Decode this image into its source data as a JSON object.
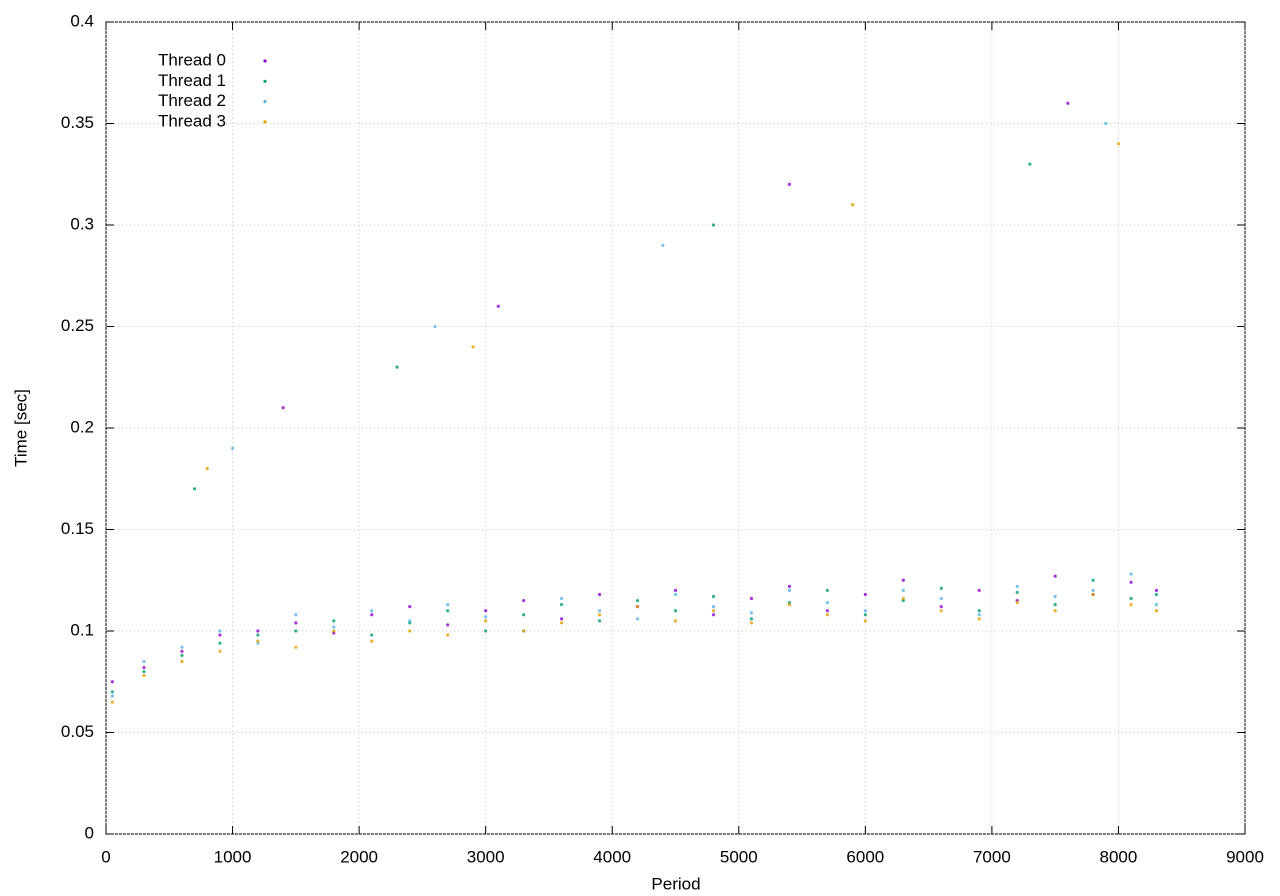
{
  "chart_data": {
    "type": "scatter",
    "xlabel": "Period",
    "ylabel": "Time [sec]",
    "xlim": [
      0,
      9000
    ],
    "xticks": [
      0,
      1000,
      2000,
      3000,
      4000,
      5000,
      6000,
      7000,
      8000,
      9000
    ],
    "ylim": [
      0,
      0.4
    ],
    "yticks": [
      0,
      0.05,
      0.1,
      0.15,
      0.2,
      0.25,
      0.3,
      0.35,
      0.4
    ],
    "grid": true,
    "legend": "upper left",
    "series": [
      {
        "name": "Thread 0",
        "color": "#9400d3",
        "x": [
          50,
          300,
          600,
          900,
          1200,
          1500,
          1800,
          2100,
          2400,
          2700,
          3000,
          3300,
          3600,
          3900,
          4200,
          4500,
          4800,
          5100,
          5400,
          5700,
          6000,
          6300,
          6600,
          6900,
          7200,
          7500,
          7800,
          8100,
          8300,
          1400,
          3100,
          5400,
          7600
        ],
        "values": [
          0.075,
          0.082,
          0.09,
          0.098,
          0.1,
          0.104,
          0.099,
          0.108,
          0.112,
          0.103,
          0.11,
          0.115,
          0.106,
          0.118,
          0.112,
          0.12,
          0.108,
          0.116,
          0.122,
          0.11,
          0.118,
          0.125,
          0.112,
          0.12,
          0.115,
          0.127,
          0.118,
          0.124,
          0.12,
          0.21,
          0.26,
          0.32,
          0.36
        ]
      },
      {
        "name": "Thread 1",
        "color": "#009e73",
        "x": [
          50,
          300,
          600,
          900,
          1200,
          1500,
          1800,
          2100,
          2400,
          2700,
          3000,
          3300,
          3600,
          3900,
          4200,
          4500,
          4800,
          5100,
          5400,
          5700,
          6000,
          6300,
          6600,
          6900,
          7200,
          7500,
          7800,
          8100,
          8300,
          700,
          2300,
          4800,
          7300
        ],
        "values": [
          0.07,
          0.08,
          0.088,
          0.094,
          0.098,
          0.1,
          0.105,
          0.098,
          0.104,
          0.11,
          0.1,
          0.108,
          0.113,
          0.105,
          0.115,
          0.11,
          0.117,
          0.106,
          0.114,
          0.12,
          0.108,
          0.115,
          0.121,
          0.11,
          0.119,
          0.113,
          0.125,
          0.116,
          0.118,
          0.17,
          0.23,
          0.3,
          0.33
        ]
      },
      {
        "name": "Thread 2",
        "color": "#56b4e9",
        "x": [
          50,
          300,
          600,
          900,
          1200,
          1500,
          1800,
          2100,
          2400,
          2700,
          3000,
          3300,
          3600,
          3900,
          4200,
          4500,
          4800,
          5100,
          5400,
          5700,
          6000,
          6300,
          6600,
          6900,
          7200,
          7500,
          7800,
          8100,
          8300,
          1000,
          2600,
          4400,
          7900
        ],
        "values": [
          0.068,
          0.085,
          0.092,
          0.1,
          0.094,
          0.108,
          0.102,
          0.11,
          0.105,
          0.113,
          0.107,
          0.1,
          0.116,
          0.11,
          0.106,
          0.118,
          0.112,
          0.109,
          0.12,
          0.114,
          0.11,
          0.12,
          0.116,
          0.108,
          0.122,
          0.117,
          0.12,
          0.128,
          0.113,
          0.19,
          0.25,
          0.29,
          0.35
        ]
      },
      {
        "name": "Thread 3",
        "color": "#e69f00",
        "x": [
          50,
          300,
          600,
          900,
          1200,
          1500,
          1800,
          2100,
          2400,
          2700,
          3000,
          3300,
          3600,
          3900,
          4200,
          4500,
          4800,
          5100,
          5400,
          5700,
          6000,
          6300,
          6600,
          6900,
          7200,
          7500,
          7800,
          8100,
          8300,
          800,
          2900,
          5900,
          8000
        ],
        "values": [
          0.065,
          0.078,
          0.085,
          0.09,
          0.095,
          0.092,
          0.1,
          0.095,
          0.1,
          0.098,
          0.105,
          0.1,
          0.104,
          0.108,
          0.112,
          0.105,
          0.11,
          0.104,
          0.113,
          0.108,
          0.105,
          0.116,
          0.11,
          0.106,
          0.114,
          0.11,
          0.118,
          0.113,
          0.11,
          0.18,
          0.24,
          0.31,
          0.34
        ]
      }
    ]
  }
}
